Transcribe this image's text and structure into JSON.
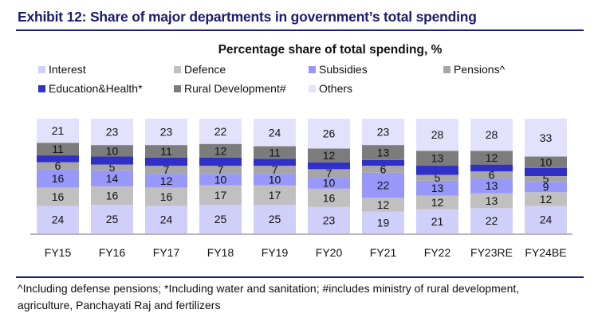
{
  "header": {
    "title": "Exhibit 12: Share of major departments in government’s total spending"
  },
  "chart_data": {
    "type": "bar",
    "stacked": true,
    "title": "Percentage share of total spending, %",
    "xlabel": "",
    "ylabel": "",
    "ylim": [
      0,
      100
    ],
    "grid": false,
    "legend_position": "top",
    "categories": [
      "FY15",
      "FY16",
      "FY17",
      "FY18",
      "FY19",
      "FY20",
      "FY21",
      "FY22",
      "FY23RE",
      "FY24BE"
    ],
    "series": [
      {
        "name": "Interest",
        "color": "#cfcffa",
        "show_labels": true,
        "values": [
          24,
          25,
          24,
          25,
          25,
          23,
          19,
          21,
          22,
          24
        ]
      },
      {
        "name": "Defence",
        "color": "#c0c0c0",
        "show_labels": true,
        "values": [
          16,
          16,
          16,
          17,
          17,
          16,
          12,
          12,
          13,
          12
        ]
      },
      {
        "name": "Subsidies",
        "color": "#9898f8",
        "show_labels": true,
        "values": [
          16,
          14,
          12,
          10,
          10,
          10,
          22,
          13,
          13,
          9
        ]
      },
      {
        "name": "Pensions^",
        "color": "#a6a6a6",
        "show_labels": true,
        "values": [
          6,
          5,
          7,
          7,
          7,
          7,
          6,
          5,
          6,
          5
        ]
      },
      {
        "name": "Education&Health*",
        "color": "#3030c8",
        "show_labels": false,
        "values": [
          6,
          7,
          7,
          7,
          6,
          6,
          5,
          8,
          6,
          7
        ]
      },
      {
        "name": "Rural Development#",
        "color": "#7c7c7c",
        "show_labels": true,
        "values": [
          11,
          10,
          11,
          12,
          11,
          12,
          13,
          13,
          12,
          10
        ]
      },
      {
        "name": "Others",
        "color": "#e2e2fc",
        "show_labels": true,
        "values": [
          21,
          23,
          23,
          22,
          24,
          26,
          23,
          28,
          28,
          33
        ]
      }
    ]
  },
  "footnote": {
    "line1": "^Including defense pensions; *Including water and sanitation; #includes ministry of rural development,",
    "line2": "agriculture, Panchayati Raj and fertilizers"
  }
}
